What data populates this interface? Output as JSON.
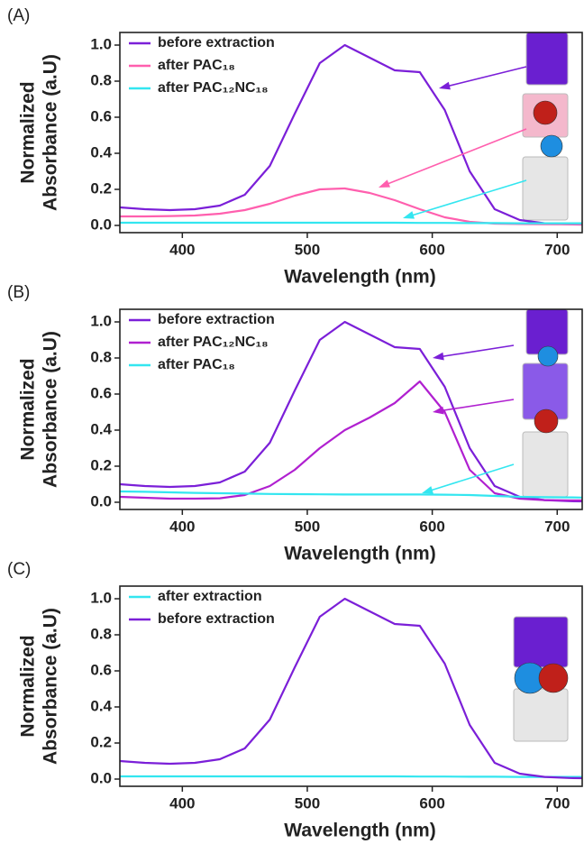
{
  "chart_data": [
    {
      "type": "line",
      "panel_label": "(A)",
      "xlabel": "Wavelength (nm)",
      "ylabel": [
        "Normalized",
        "Absorbance (a.U)"
      ],
      "legend": "upper left",
      "xlim": [
        350,
        720
      ],
      "ylim": [
        -0.04,
        1.07
      ],
      "xticks": [
        400,
        500,
        600,
        700
      ],
      "yticks": [
        {
          "value": 0,
          "label": "0.0"
        },
        0.2,
        0.4,
        0.6,
        0.8,
        {
          "value": 1,
          "label": "1.0"
        }
      ],
      "x": [
        350,
        370,
        390,
        410,
        430,
        450,
        470,
        490,
        510,
        530,
        550,
        570,
        590,
        610,
        630,
        650,
        670,
        690,
        710,
        720
      ],
      "series": [
        {
          "name": "before extraction",
          "color": "#7b1fd8",
          "values": [
            0.1,
            0.09,
            0.085,
            0.09,
            0.11,
            0.17,
            0.33,
            0.62,
            0.9,
            1.0,
            0.93,
            0.86,
            0.85,
            0.64,
            0.3,
            0.09,
            0.03,
            0.012,
            0.006,
            0.005
          ]
        },
        {
          "name": "after PAC₁₈",
          "color": "#ff5fae",
          "values": [
            0.05,
            0.05,
            0.052,
            0.055,
            0.065,
            0.085,
            0.12,
            0.165,
            0.2,
            0.205,
            0.18,
            0.14,
            0.09,
            0.045,
            0.02,
            0.01,
            0.008,
            0.007,
            0.006,
            0.006
          ]
        },
        {
          "name": "after PAC₁₂NC₁₈",
          "color": "#33e6f0",
          "values": [
            0.015,
            0.015,
            0.015,
            0.015,
            0.015,
            0.015,
            0.015,
            0.015,
            0.015,
            0.015,
            0.015,
            0.015,
            0.014,
            0.014,
            0.013,
            0.013,
            0.012,
            0.012,
            0.012,
            0.012
          ]
        }
      ]
    },
    {
      "type": "line",
      "panel_label": "(B)",
      "xlabel": "Wavelength (nm)",
      "ylabel": [
        "Normalized",
        "Absorbance (a.U)"
      ],
      "legend": "upper left",
      "xlim": [
        350,
        720
      ],
      "ylim": [
        -0.04,
        1.07
      ],
      "xticks": [
        400,
        500,
        600,
        700
      ],
      "yticks": [
        {
          "value": 0,
          "label": "0.0"
        },
        0.2,
        0.4,
        0.6,
        0.8,
        {
          "value": 1,
          "label": "1.0"
        }
      ],
      "x": [
        350,
        370,
        390,
        410,
        430,
        450,
        470,
        490,
        510,
        530,
        550,
        570,
        590,
        610,
        630,
        650,
        670,
        690,
        710,
        720
      ],
      "series": [
        {
          "name": "before extraction",
          "color": "#7b1fd8",
          "values": [
            0.1,
            0.09,
            0.085,
            0.09,
            0.11,
            0.17,
            0.33,
            0.62,
            0.9,
            1.0,
            0.93,
            0.86,
            0.85,
            0.64,
            0.3,
            0.09,
            0.03,
            0.012,
            0.006,
            0.005
          ]
        },
        {
          "name": "after PAC₁₂NC₁₈",
          "color": "#b020d0",
          "values": [
            0.03,
            0.025,
            0.02,
            0.02,
            0.022,
            0.04,
            0.09,
            0.18,
            0.3,
            0.4,
            0.47,
            0.55,
            0.67,
            0.5,
            0.18,
            0.05,
            0.02,
            0.012,
            0.01,
            0.01
          ]
        },
        {
          "name": "after PAC₁₈",
          "color": "#33e6f0",
          "values": [
            0.06,
            0.058,
            0.055,
            0.052,
            0.05,
            0.048,
            0.046,
            0.045,
            0.044,
            0.043,
            0.043,
            0.043,
            0.043,
            0.042,
            0.04,
            0.035,
            0.03,
            0.028,
            0.027,
            0.026
          ]
        }
      ]
    },
    {
      "type": "line",
      "panel_label": "(C)",
      "xlabel": "Wavelength (nm)",
      "ylabel": [
        "Normalized",
        "Absorbance (a.U)"
      ],
      "legend": "upper left",
      "xlim": [
        350,
        720
      ],
      "ylim": [
        -0.04,
        1.07
      ],
      "xticks": [
        400,
        500,
        600,
        700
      ],
      "yticks": [
        {
          "value": 0,
          "label": "0.0"
        },
        0.2,
        0.4,
        0.6,
        0.8,
        {
          "value": 1,
          "label": "1.0"
        }
      ],
      "x": [
        350,
        370,
        390,
        410,
        430,
        450,
        470,
        490,
        510,
        530,
        550,
        570,
        590,
        610,
        630,
        650,
        670,
        690,
        710,
        720
      ],
      "series": [
        {
          "name": "after extraction",
          "color": "#33e6f0",
          "values": [
            0.015,
            0.015,
            0.015,
            0.015,
            0.015,
            0.015,
            0.015,
            0.015,
            0.015,
            0.015,
            0.015,
            0.015,
            0.014,
            0.014,
            0.013,
            0.013,
            0.012,
            0.012,
            0.012,
            0.012
          ]
        },
        {
          "name": "before extraction",
          "color": "#7b1fd8",
          "values": [
            0.1,
            0.09,
            0.085,
            0.09,
            0.11,
            0.17,
            0.33,
            0.62,
            0.9,
            1.0,
            0.93,
            0.86,
            0.85,
            0.64,
            0.3,
            0.09,
            0.03,
            0.012,
            0.006,
            0.005
          ]
        }
      ]
    }
  ]
}
